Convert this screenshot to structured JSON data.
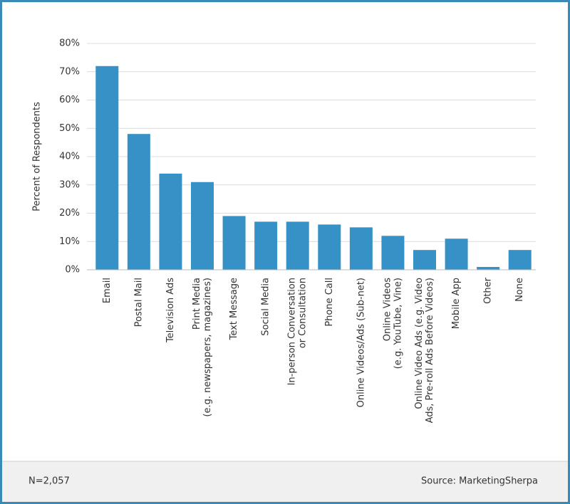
{
  "chart_data": {
    "type": "bar",
    "y_label": "Percent of Respondents",
    "categories": [
      [
        "Email"
      ],
      [
        "Postal Mail"
      ],
      [
        "Television Ads"
      ],
      [
        "Print Media",
        "(e.g. newspapers, magazines)"
      ],
      [
        "Text Message"
      ],
      [
        "Social Media"
      ],
      [
        "In-person Conversation",
        "or Consultation"
      ],
      [
        "Phone Call"
      ],
      [
        "Online Videos/Ads (Sub-net)"
      ],
      [
        "Online Videos",
        "(e.g. YouTube, Vine)"
      ],
      [
        "Online Video Ads (e.g. Video",
        "Ads, Pre-roll Ads Before Videos)"
      ],
      [
        "Mobile App"
      ],
      [
        "Other"
      ],
      [
        "None"
      ]
    ],
    "values": [
      72,
      48,
      34,
      31,
      19,
      17,
      17,
      16,
      15,
      12,
      7,
      11,
      1,
      7
    ],
    "color": "#3591c6",
    "ylim": [
      0,
      80
    ],
    "yticks": [
      {
        "value": 0,
        "label": "0%"
      },
      {
        "value": 10,
        "label": "10%"
      },
      {
        "value": 20,
        "label": "20%"
      },
      {
        "value": 30,
        "label": "30%"
      },
      {
        "value": 40,
        "label": "40%"
      },
      {
        "value": 50,
        "label": "50%"
      },
      {
        "value": 60,
        "label": "60%"
      },
      {
        "value": 70,
        "label": "70%"
      },
      {
        "value": 80,
        "label": "80%"
      }
    ],
    "grid": true,
    "note": "N=2,057",
    "source": "Source: MarketingSherpa"
  }
}
